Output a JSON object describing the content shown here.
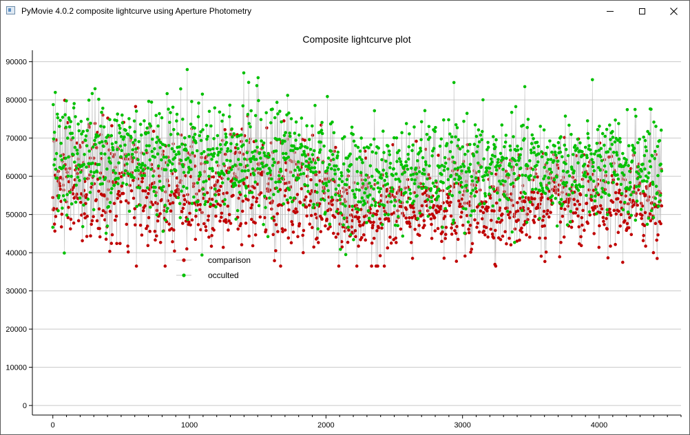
{
  "window": {
    "title": "PyMovie 4.0.2 composite lightcurve using Aperture Photometry",
    "icons": [
      "app-icon",
      "minimize-icon",
      "maximize-icon",
      "close-icon"
    ]
  },
  "chart_data": {
    "type": "scatter",
    "title": "Composite lightcurve plot",
    "xlabel": "",
    "ylabel": "",
    "xlim": [
      -150,
      4600
    ],
    "ylim": [
      -2500,
      93000
    ],
    "x_ticks": [
      0,
      1000,
      2000,
      3000,
      4000
    ],
    "x_tick_labels": [
      "0",
      "1000",
      "2000",
      "3000",
      "4000"
    ],
    "y_ticks": [
      0,
      10000,
      20000,
      30000,
      40000,
      50000,
      60000,
      70000,
      80000,
      90000
    ],
    "y_tick_labels": [
      "0",
      "10000",
      "20000",
      "30000",
      "40000",
      "50000",
      "60000",
      "70000",
      "80000",
      "90000"
    ],
    "grid": "horizontal",
    "legend_position": "center-left",
    "connect_points": true,
    "colors": {
      "connector": "#c0c0c0",
      "grid": "#c8c8c8",
      "axis": "#000000"
    },
    "series": [
      {
        "name": "comparison",
        "color": "#c00000",
        "x_start": 0,
        "x_end": 4460,
        "profile_x": [
          0,
          300,
          600,
          900,
          1200,
          1500,
          1800,
          2000,
          2100,
          2400,
          2700,
          3000,
          3300,
          3600,
          3900,
          4200,
          4460
        ],
        "profile_mean": [
          57000,
          57500,
          57000,
          57000,
          56500,
          57500,
          55000,
          54000,
          50000,
          50500,
          51500,
          52500,
          53000,
          53000,
          53000,
          53000,
          53000
        ],
        "profile_spread": [
          7500,
          8000,
          8000,
          8000,
          7500,
          8000,
          7500,
          7000,
          6000,
          6000,
          6000,
          6000,
          6000,
          6000,
          6000,
          6000,
          6000
        ],
        "min": 36500,
        "max": 86500
      },
      {
        "name": "occulted",
        "color": "#00c000",
        "x_start": 0,
        "x_end": 4460,
        "profile_x": [
          0,
          300,
          600,
          900,
          1200,
          1500,
          1800,
          2000,
          2100,
          2400,
          2700,
          3000,
          3300,
          3600,
          3900,
          4200,
          4460
        ],
        "profile_mean": [
          65000,
          66000,
          66000,
          66000,
          65000,
          66000,
          64000,
          63000,
          59000,
          59500,
          61000,
          61500,
          62000,
          62000,
          62000,
          62000,
          62000
        ],
        "profile_spread": [
          7500,
          8000,
          8000,
          8000,
          7500,
          8000,
          7500,
          7000,
          6500,
          6500,
          6500,
          6500,
          6500,
          6500,
          6500,
          6500,
          6500
        ],
        "min": 39000,
        "max": 89000
      }
    ]
  }
}
